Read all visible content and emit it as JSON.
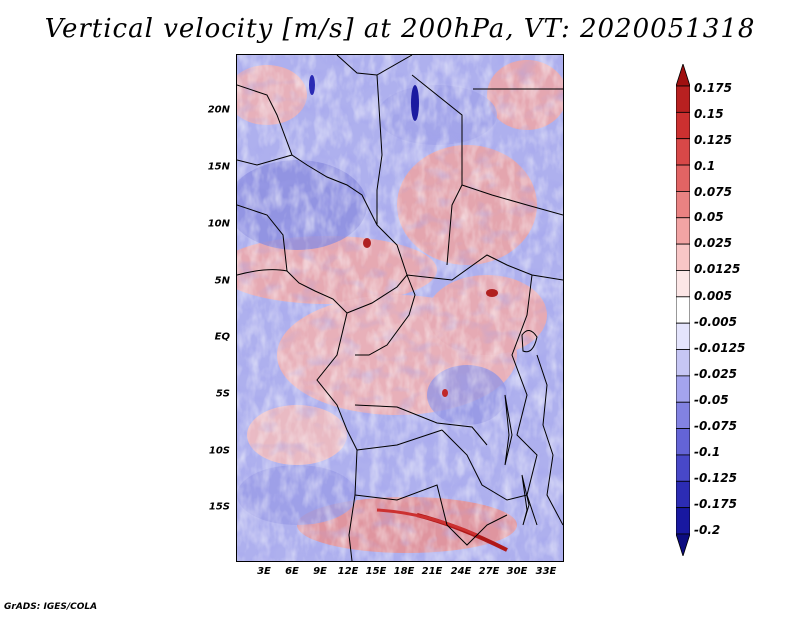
{
  "title": "Vertical velocity [m/s] at 200hPa, VT: 2020051318",
  "credit": "GrADS: IGES/COLA",
  "y_axis_labels": [
    "20N",
    "15N",
    "10N",
    "5N",
    "EQ",
    "5S",
    "10S",
    "15S"
  ],
  "x_axis_labels": [
    "3E",
    "6E",
    "9E",
    "12E",
    "15E",
    "18E",
    "21E",
    "24E",
    "27E",
    "30E",
    "33E"
  ],
  "colorbar_labels": [
    "0.175",
    "0.15",
    "0.125",
    "0.1",
    "0.075",
    "0.05",
    "0.025",
    "0.0125",
    "0.005",
    "-0.005",
    "-0.0125",
    "-0.025",
    "-0.05",
    "-0.075",
    "-0.1",
    "-0.125",
    "-0.175",
    "-0.2"
  ],
  "colorbar_colors": [
    "#a01010",
    "#b82020",
    "#cc3030",
    "#d84848",
    "#e26464",
    "#ea8282",
    "#f2a4a4",
    "#f8c6c6",
    "#fce6e6",
    "#ffffff",
    "#e4e4fc",
    "#c6c6f4",
    "#a4a4ee",
    "#8282e2",
    "#6464d6",
    "#4848c8",
    "#2c2cb4",
    "#1818a0",
    "#0c0c80"
  ],
  "map_extent": {
    "lon": [
      0,
      35
    ],
    "lat": [
      -20,
      25
    ]
  }
}
